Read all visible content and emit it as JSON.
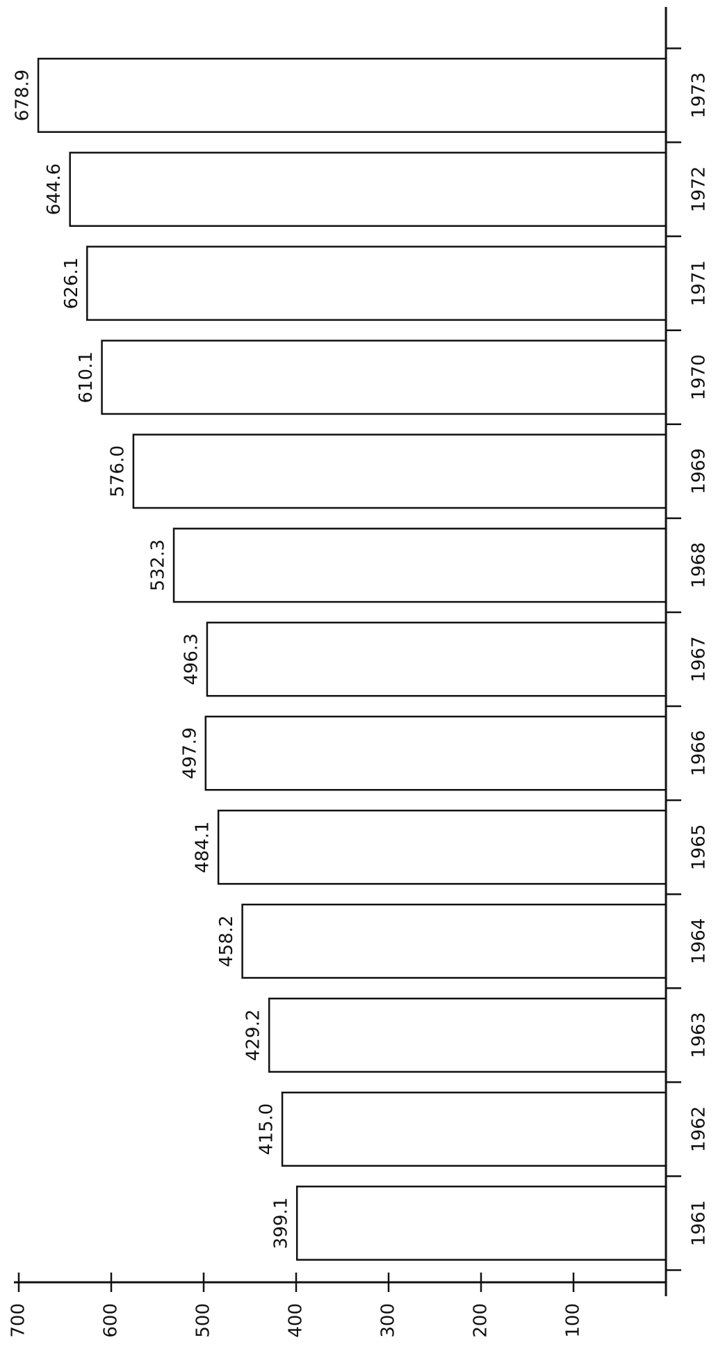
{
  "chart_data": {
    "type": "bar",
    "orientation": "horizontal",
    "categories": [
      "1961",
      "1962",
      "1963",
      "1964",
      "1965",
      "1966",
      "1967",
      "1968",
      "1969",
      "1970",
      "1971",
      "1972",
      "1973"
    ],
    "values": [
      399.1,
      415.0,
      429.2,
      458.2,
      484.1,
      497.9,
      496.3,
      532.3,
      576.0,
      610.1,
      626.1,
      644.6,
      678.9
    ],
    "value_labels": [
      "399.1",
      "415.0",
      "429.2",
      "458.2",
      "484.1",
      "497.9",
      "496.3",
      "532.3",
      "576.0",
      "610.1",
      "626.1",
      "644.6",
      "678.9"
    ],
    "color": "#111111",
    "ylim": [
      0,
      700
    ],
    "yticks": [
      100,
      200,
      300,
      400,
      500,
      600,
      700
    ],
    "grid": false
  }
}
